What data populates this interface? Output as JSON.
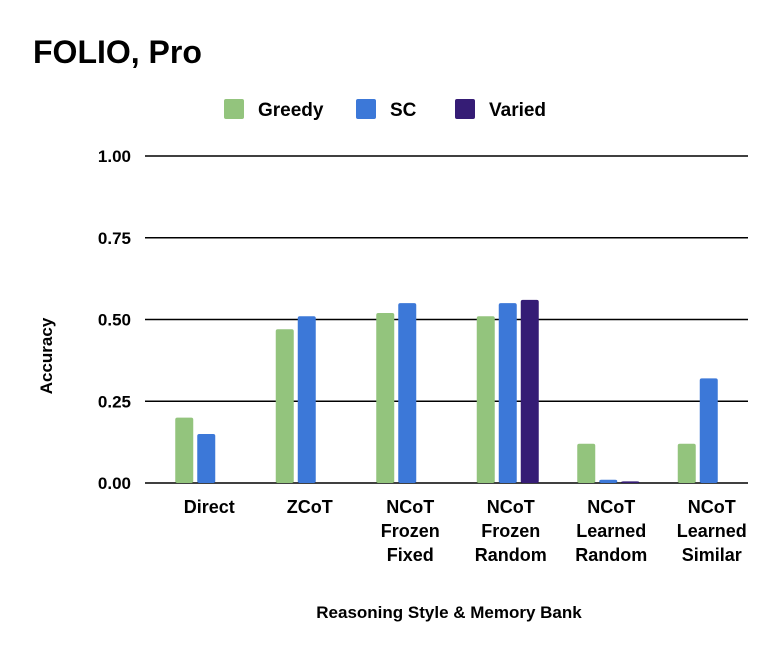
{
  "chart_data": {
    "type": "bar",
    "title": "FOLIO, Pro",
    "xlabel": "Reasoning Style & Memory Bank",
    "ylabel": "Accuracy",
    "ylim": [
      0,
      1
    ],
    "yticks": [
      "0.00",
      "0.25",
      "0.50",
      "0.75",
      "1.00"
    ],
    "ytick_values": [
      0,
      0.25,
      0.5,
      0.75,
      1.0
    ],
    "grid": true,
    "legend_position": "top-center",
    "categories": [
      [
        "Direct"
      ],
      [
        "ZCoT"
      ],
      [
        "NCoT",
        "Frozen",
        "Fixed"
      ],
      [
        "NCoT",
        "Frozen",
        "Random"
      ],
      [
        "NCoT",
        "Learned",
        "Random"
      ],
      [
        "NCoT",
        "Learned",
        "Similar"
      ]
    ],
    "series": [
      {
        "name": "Greedy",
        "color": "#93c47d",
        "values": [
          0.2,
          0.47,
          0.52,
          0.51,
          0.12,
          0.12
        ]
      },
      {
        "name": "SC",
        "color": "#3c78d8",
        "values": [
          0.15,
          0.51,
          0.55,
          0.55,
          0.01,
          0.32
        ]
      },
      {
        "name": "Varied",
        "color": "#351c75",
        "values": [
          null,
          null,
          null,
          0.56,
          0.005,
          null
        ]
      }
    ]
  }
}
